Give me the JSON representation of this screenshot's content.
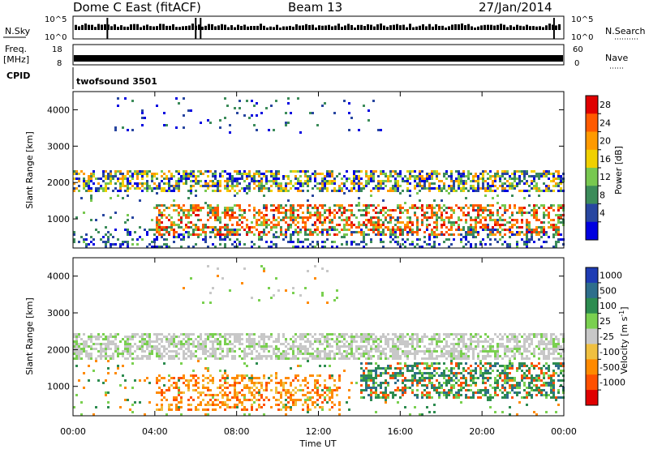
{
  "header": {
    "title": "Dome C East (fitACF)",
    "beam": "Beam 13",
    "date": "27/Jan/2014"
  },
  "top_panels": {
    "nsky_label": "N.Sky",
    "nsky_ticks": [
      "10^5",
      "10^0"
    ],
    "nsearch_label": "N.Search",
    "freq_label_1": "Freq.",
    "freq_label_2": "[MHz]",
    "freq_ticks": [
      "18",
      "8"
    ],
    "nave_label": "Nave",
    "nave_ticks": [
      "60",
      "0"
    ],
    "cpid_label": "CPID",
    "cpid_value": "twofsound 3501"
  },
  "chart_data": [
    {
      "type": "heatmap",
      "name": "power",
      "ylabel": "Slant Range [km]",
      "yticks": [
        "4000",
        "3000",
        "2000",
        "1000"
      ],
      "ylim": [
        200,
        4500
      ],
      "colorbar_label": "Power [dB]",
      "colorbar_ticks": [
        "28",
        "24",
        "20",
        "16",
        "12",
        "8",
        "4"
      ],
      "colorbar_colors": [
        "#e00000",
        "#ff5a00",
        "#ff9a00",
        "#f0d000",
        "#78c850",
        "#3c8c5a",
        "#2846a0",
        "#0000e0"
      ],
      "bands": [
        {
          "label": "main echo band",
          "range_km": [
            1700,
            2300
          ],
          "time_h": [
            0,
            24
          ],
          "level": "mixed"
        },
        {
          "label": "strong near-range echoes",
          "range_km": [
            500,
            1400
          ],
          "time_h": [
            4,
            24
          ],
          "level": "high"
        },
        {
          "label": "sparse far echoes",
          "range_km": [
            3300,
            4300
          ],
          "time_h": [
            2,
            15
          ],
          "level": "low"
        }
      ]
    },
    {
      "type": "heatmap",
      "name": "velocity",
      "xlabel": "Time UT",
      "xticks": [
        "00:00",
        "04:00",
        "08:00",
        "12:00",
        "16:00",
        "20:00",
        "00:00"
      ],
      "ylabel": "Slant Range [km]",
      "yticks": [
        "4000",
        "3000",
        "2000",
        "1000"
      ],
      "ylim": [
        200,
        4500
      ],
      "colorbar_label": "Velocity [m s",
      "colorbar_label_sup": "-1",
      "colorbar_ticks": [
        "1000",
        "500",
        "100",
        "25",
        "-25",
        "-100",
        "-500",
        "-1000"
      ],
      "colorbar_colors": [
        "#1e3cb4",
        "#2e6e8c",
        "#2d8c50",
        "#7ad050",
        "#c8c8c8",
        "#f0c040",
        "#ff8a00",
        "#ff5000",
        "#e00000"
      ],
      "bands": [
        {
          "label": "grey band near zero",
          "range_km": [
            1700,
            2400
          ],
          "time_h": [
            0,
            24
          ],
          "level": "~0"
        },
        {
          "label": "orange negative",
          "range_km": [
            300,
            1300
          ],
          "time_h": [
            4,
            13
          ],
          "level": "negative"
        },
        {
          "label": "green positive",
          "range_km": [
            600,
            1600
          ],
          "time_h": [
            14,
            24
          ],
          "level": "positive"
        }
      ]
    }
  ]
}
